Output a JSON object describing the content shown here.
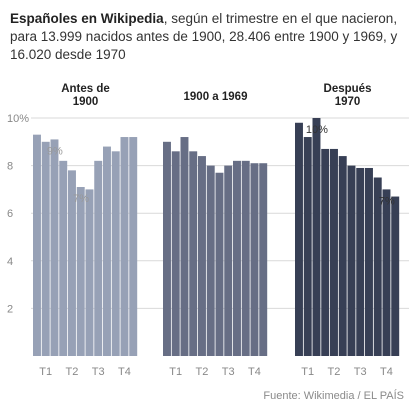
{
  "title": {
    "bold": "Españoles en Wikipedia",
    "rest": ", según el trimestre en el que nacieron, para 13.999 nacidos antes de 1900, 28.406 entre 1900 y 1969, y 16.020 desde 1970"
  },
  "source": "Fuente: Wikimedia / EL PAÍS",
  "colors": {
    "grid": "#d9d9d9",
    "axis_text": "#888888",
    "note_text": "#999999",
    "note_text_dark": "#333333",
    "panel_label": "#222222"
  },
  "chart_data": {
    "type": "bar",
    "y_unit": "%",
    "ylim": [
      0,
      10
    ],
    "yticks": [
      2,
      4,
      6,
      8,
      10
    ],
    "ytick_labels": [
      "2",
      "4",
      "6",
      "8",
      "10%"
    ],
    "grid": true,
    "panels": [
      {
        "label": [
          "Antes de",
          "1900"
        ],
        "color": "#97a1b6",
        "values": [
          9.3,
          9.0,
          9.1,
          8.2,
          7.8,
          7.1,
          7.0,
          8.2,
          8.8,
          8.6,
          9.2,
          9.2
        ],
        "xtick_labels": [
          "T1",
          "T2",
          "T3",
          "T4"
        ],
        "annotations": [
          {
            "text": "9%",
            "bar_index": 2
          },
          {
            "text": "7%",
            "bar_index": 5
          }
        ]
      },
      {
        "label": [
          "1900 a 1969"
        ],
        "color": "#676e85",
        "values": [
          9.0,
          8.6,
          9.2,
          8.6,
          8.4,
          8.0,
          7.7,
          8.0,
          8.2,
          8.2,
          8.1,
          8.1
        ],
        "xtick_labels": [
          "T1",
          "T2",
          "T3",
          "T4"
        ],
        "annotations": []
      },
      {
        "label": [
          "Después",
          "1970"
        ],
        "color": "#373f55",
        "values": [
          9.8,
          9.2,
          10.0,
          8.7,
          8.7,
          8.4,
          8.0,
          7.9,
          7.9,
          7.5,
          7.0,
          6.7
        ],
        "xtick_labels": [
          "T1",
          "T2",
          "T3",
          "T4"
        ],
        "annotations": [
          {
            "text": "10%",
            "bar_index": 2
          },
          {
            "text": "7%",
            "bar_index": 10
          }
        ]
      }
    ]
  }
}
